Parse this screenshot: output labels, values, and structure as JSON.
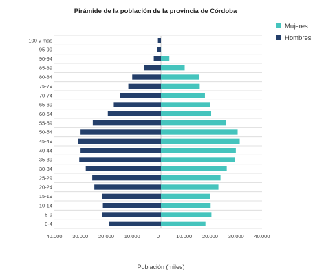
{
  "chart_data": {
    "type": "bar",
    "orientation": "horizontal-pyramid",
    "title": "Pirámide de la población de la provincia de Córdoba",
    "xlabel": "Población (miles)",
    "ylabel": "",
    "xlim": [
      -40000,
      40000
    ],
    "x_ticks": [
      -40000,
      -30000,
      -20000,
      -10000,
      0,
      10000,
      20000,
      30000,
      40000
    ],
    "x_tick_labels": [
      "40.000",
      "30.000",
      "20.000",
      "10.000",
      "0",
      "10.000",
      "20.000",
      "30.000",
      "40.000"
    ],
    "grid": "horizontal",
    "legend_position": "top-right",
    "categories": [
      "0-4",
      "5-9",
      "10-14",
      "15-19",
      "20-24",
      "25-29",
      "30-34",
      "35-39",
      "40-44",
      "45-49",
      "50-54",
      "55-59",
      "60-64",
      "65-69",
      "70-74",
      "75-79",
      "80-84",
      "85-89",
      "90-94",
      "95-99",
      "100 y más"
    ],
    "series": [
      {
        "name": "Mujeres",
        "color": "#45c4bd",
        "values": [
          18200,
          20500,
          20200,
          20100,
          23200,
          24000,
          26400,
          29500,
          29900,
          31400,
          30600,
          26200,
          20400,
          20100,
          18000,
          16000,
          15900,
          10200,
          4300,
          1100,
          200
        ]
      },
      {
        "name": "Hombres",
        "color": "#243f6a",
        "values": [
          18900,
          21600,
          21300,
          21500,
          24600,
          25400,
          27900,
          30400,
          29900,
          30900,
          29900,
          25200,
          19400,
          17100,
          14600,
          11500,
          10000,
          5300,
          1700,
          400,
          100
        ]
      }
    ]
  }
}
